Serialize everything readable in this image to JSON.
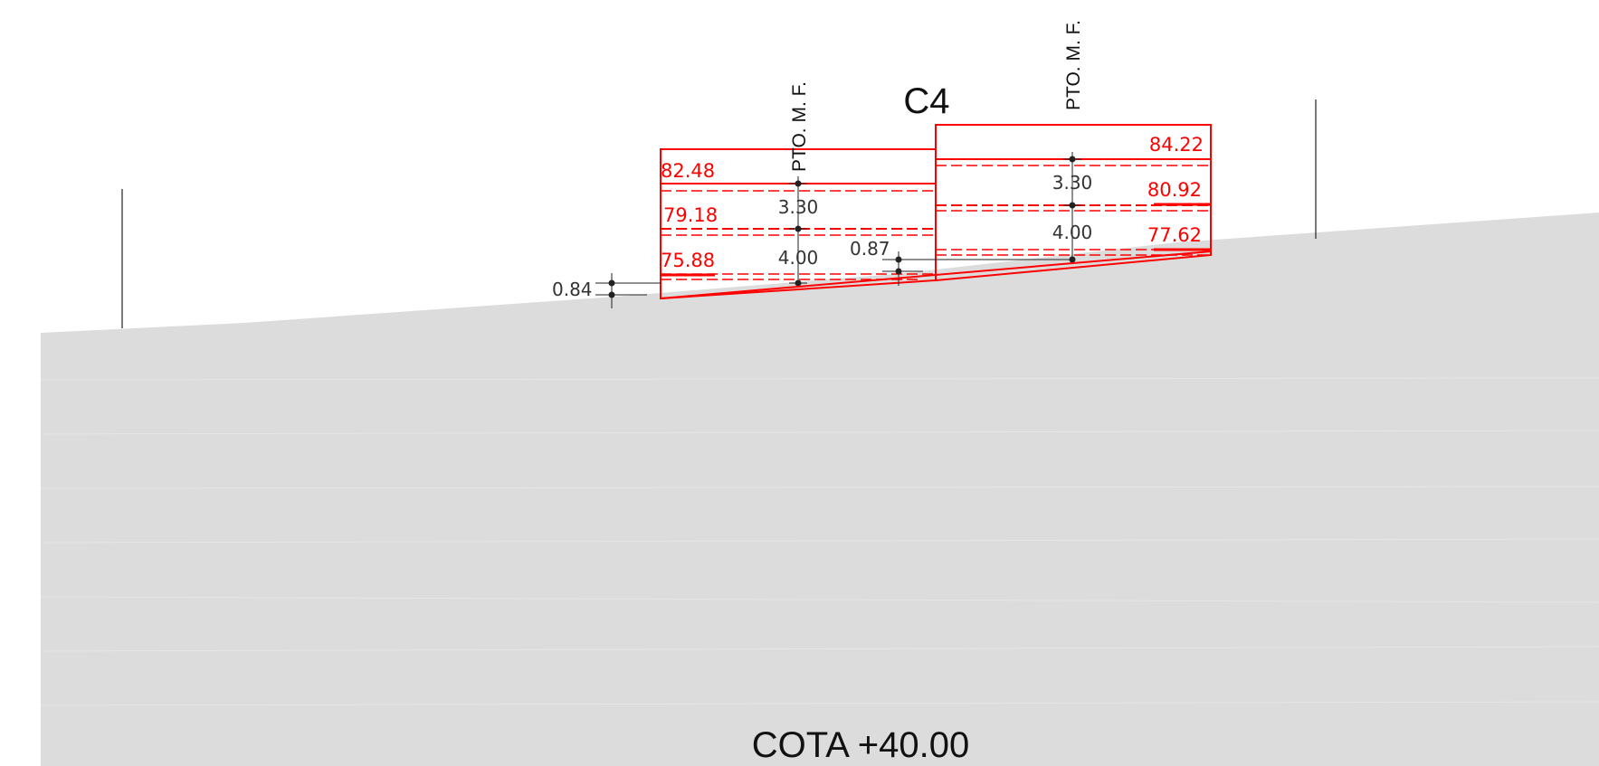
{
  "drawing": {
    "title": "C4",
    "base_label": "COTA +40.00",
    "colors": {
      "terrain_fill": "#dcdcdc",
      "structure": "#ff0000",
      "dimension": "#222222",
      "background": "#ffffff"
    },
    "left_block": {
      "marker_label": "PTO. M. F.",
      "level_labels": [
        "82.48",
        "79.18",
        "75.88"
      ],
      "dimension_labels": [
        "3.30",
        "4.00"
      ],
      "offset_dimension": "0.84"
    },
    "right_block": {
      "marker_label": "PTO. M. F.",
      "level_labels": [
        "84.22",
        "80.92",
        "77.62"
      ],
      "dimension_labels": [
        "3.30",
        "4.00"
      ],
      "offset_dimension": "0.87"
    }
  }
}
